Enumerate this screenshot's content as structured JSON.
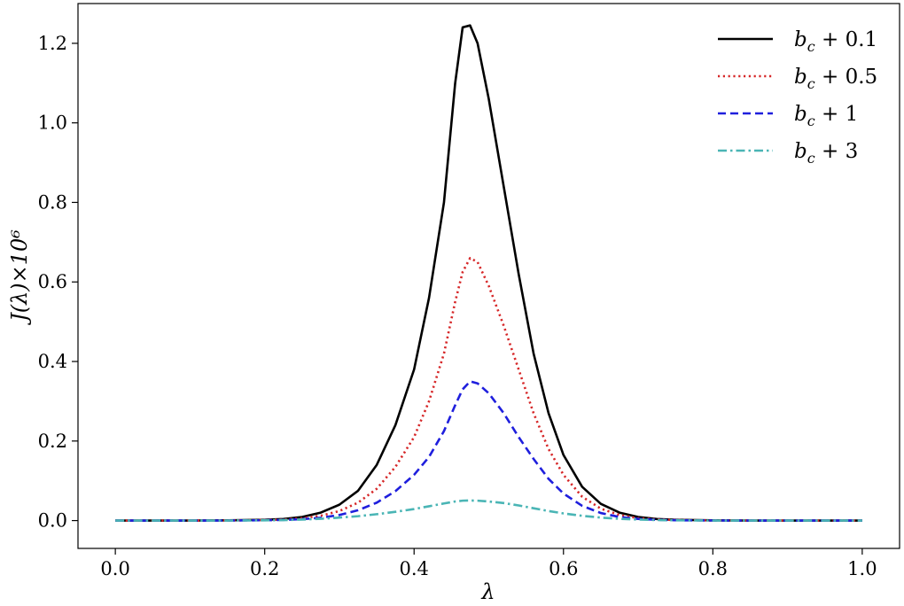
{
  "chart_data": {
    "type": "line",
    "title": "",
    "xlabel": "λ",
    "ylabel": "J(λ)×10⁶",
    "xlim": [
      -0.05,
      1.05
    ],
    "ylim": [
      -0.07,
      1.3
    ],
    "xticks": [
      0.0,
      0.2,
      0.4,
      0.6,
      0.8,
      1.0
    ],
    "xtick_labels": [
      "0.0",
      "0.2",
      "0.4",
      "0.6",
      "0.8",
      "1.0"
    ],
    "yticks": [
      0.0,
      0.2,
      0.4,
      0.6,
      0.8,
      1.0,
      1.2
    ],
    "ytick_labels": [
      "0.0",
      "0.2",
      "0.4",
      "0.6",
      "0.8",
      "1.0",
      "1.2"
    ],
    "grid": false,
    "legend_position": "top-right",
    "x": [
      0.0,
      0.05,
      0.1,
      0.15,
      0.2,
      0.225,
      0.25,
      0.275,
      0.3,
      0.325,
      0.35,
      0.375,
      0.4,
      0.42,
      0.44,
      0.455,
      0.465,
      0.475,
      0.485,
      0.5,
      0.52,
      0.54,
      0.56,
      0.58,
      0.6,
      0.625,
      0.65,
      0.675,
      0.7,
      0.725,
      0.75,
      0.8,
      0.85,
      0.9,
      0.95,
      1.0
    ],
    "series": [
      {
        "name": "b_c + 0.1",
        "label_base": "b",
        "label_sub": "c",
        "label_rest": " + 0.1",
        "color": "#000000",
        "dash": "solid",
        "values": [
          0.0,
          0.0,
          0.0,
          0.0005,
          0.002,
          0.004,
          0.009,
          0.02,
          0.04,
          0.075,
          0.14,
          0.24,
          0.38,
          0.56,
          0.8,
          1.1,
          1.24,
          1.245,
          1.2,
          1.06,
          0.84,
          0.62,
          0.42,
          0.27,
          0.165,
          0.085,
          0.042,
          0.02,
          0.009,
          0.004,
          0.002,
          0.0005,
          0.0,
          0.0,
          0.0,
          0.0
        ]
      },
      {
        "name": "b_c + 0.5",
        "label_base": "b",
        "label_sub": "c",
        "label_rest": " + 0.5",
        "color": "#d62728",
        "dash": "dotted",
        "values": [
          0.0,
          0.0,
          0.0,
          0.0003,
          0.0012,
          0.0025,
          0.006,
          0.012,
          0.024,
          0.045,
          0.08,
          0.135,
          0.21,
          0.3,
          0.42,
          0.55,
          0.625,
          0.66,
          0.65,
          0.59,
          0.49,
          0.38,
          0.27,
          0.18,
          0.115,
          0.06,
          0.03,
          0.014,
          0.006,
          0.003,
          0.0013,
          0.0003,
          0.0,
          0.0,
          0.0,
          0.0
        ]
      },
      {
        "name": "b_c + 1",
        "label_base": "b",
        "label_sub": "c",
        "label_rest": " + 1",
        "color": "#1f1fdd",
        "dash": "dashed",
        "values": [
          0.0,
          0.0,
          0.0,
          0.0002,
          0.0008,
          0.0016,
          0.0035,
          0.007,
          0.014,
          0.026,
          0.045,
          0.074,
          0.115,
          0.16,
          0.225,
          0.29,
          0.33,
          0.35,
          0.345,
          0.32,
          0.27,
          0.21,
          0.155,
          0.105,
          0.068,
          0.037,
          0.019,
          0.009,
          0.0042,
          0.0019,
          0.0008,
          0.0002,
          0.0,
          0.0,
          0.0,
          0.0
        ]
      },
      {
        "name": "b_c + 3",
        "label_base": "b",
        "label_sub": "c",
        "label_rest": " + 3",
        "color": "#4ab5b5",
        "dash": "dashdot",
        "values": [
          0.0,
          0.0,
          0.0,
          0.0001,
          0.0006,
          0.0012,
          0.0025,
          0.0045,
          0.0075,
          0.011,
          0.016,
          0.022,
          0.029,
          0.036,
          0.043,
          0.048,
          0.05,
          0.0505,
          0.05,
          0.048,
          0.044,
          0.038,
          0.031,
          0.024,
          0.018,
          0.012,
          0.0075,
          0.0045,
          0.0025,
          0.0013,
          0.0006,
          0.0001,
          0.0,
          0.0,
          0.0,
          0.0
        ]
      }
    ]
  }
}
